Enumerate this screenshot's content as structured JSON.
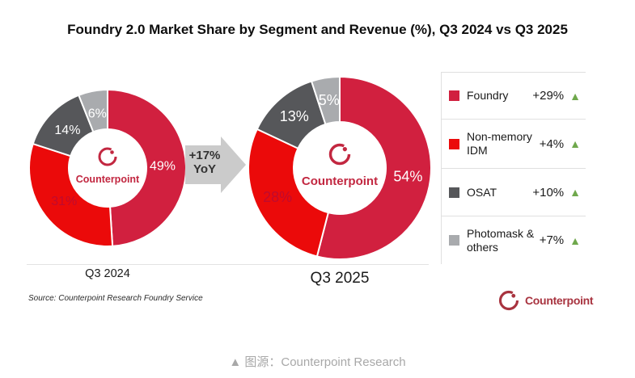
{
  "title": "Foundry 2.0 Market Share by Segment and Revenue (%), Q3 2024 vs Q3 2025",
  "growth_arrow": {
    "value": "+17%",
    "period": "YoY"
  },
  "chart_data": [
    {
      "type": "pie",
      "title": "Q3 2024",
      "categories": [
        "Foundry",
        "Non-memory IDM",
        "OSAT",
        "Photomask & others"
      ],
      "values": [
        49,
        31,
        14,
        6
      ],
      "unit": "%",
      "colors": [
        "#D1203F",
        "#EB0A0A",
        "#56575A",
        "#A9ABAE"
      ],
      "label_colors": [
        "#FFFFFF",
        "#C00A2E",
        "#FFFFFF",
        "#FFFFFF"
      ],
      "donut_hole": 0.5,
      "start_angle": 0,
      "direction": "clockwise",
      "center_text": "Counterpoint"
    },
    {
      "type": "pie",
      "title": "Q3 2025",
      "categories": [
        "Foundry",
        "Non-memory IDM",
        "OSAT",
        "Photomask & others"
      ],
      "values": [
        54,
        28,
        13,
        5
      ],
      "unit": "%",
      "colors": [
        "#D1203F",
        "#EB0A0A",
        "#56575A",
        "#A9ABAE"
      ],
      "label_colors": [
        "#FFFFFF",
        "#C00A2E",
        "#FFFFFF",
        "#FFFFFF"
      ],
      "donut_hole": 0.5,
      "start_angle": 0,
      "direction": "clockwise",
      "center_text": "Counterpoint"
    }
  ],
  "legend": [
    {
      "label": "Foundry",
      "change": "+29%",
      "trend": "up",
      "color": "#D1203F"
    },
    {
      "label": "Non-memory IDM",
      "change": "+4%",
      "trend": "up",
      "color": "#EB0A0A"
    },
    {
      "label": "OSAT",
      "change": "+10%",
      "trend": "up",
      "color": "#56575A"
    },
    {
      "label": "Photomask & others",
      "change": "+7%",
      "trend": "up",
      "color": "#A9ABAE"
    }
  ],
  "source": "Source: Counterpoint Research Foundry Service",
  "brand": {
    "name": "Counterpoint"
  },
  "caption": "▲ 图源：Counterpoint Research",
  "theme": {
    "crimson": "#D1203F",
    "red": "#EB0A0A",
    "dark_gray": "#56575A",
    "light_gray": "#A9ABAE",
    "arrow_gray": "#CBCBCB",
    "green": "#6FA84C",
    "brand_crimson": "#C22740",
    "logo_crimson": "#A8333F"
  }
}
